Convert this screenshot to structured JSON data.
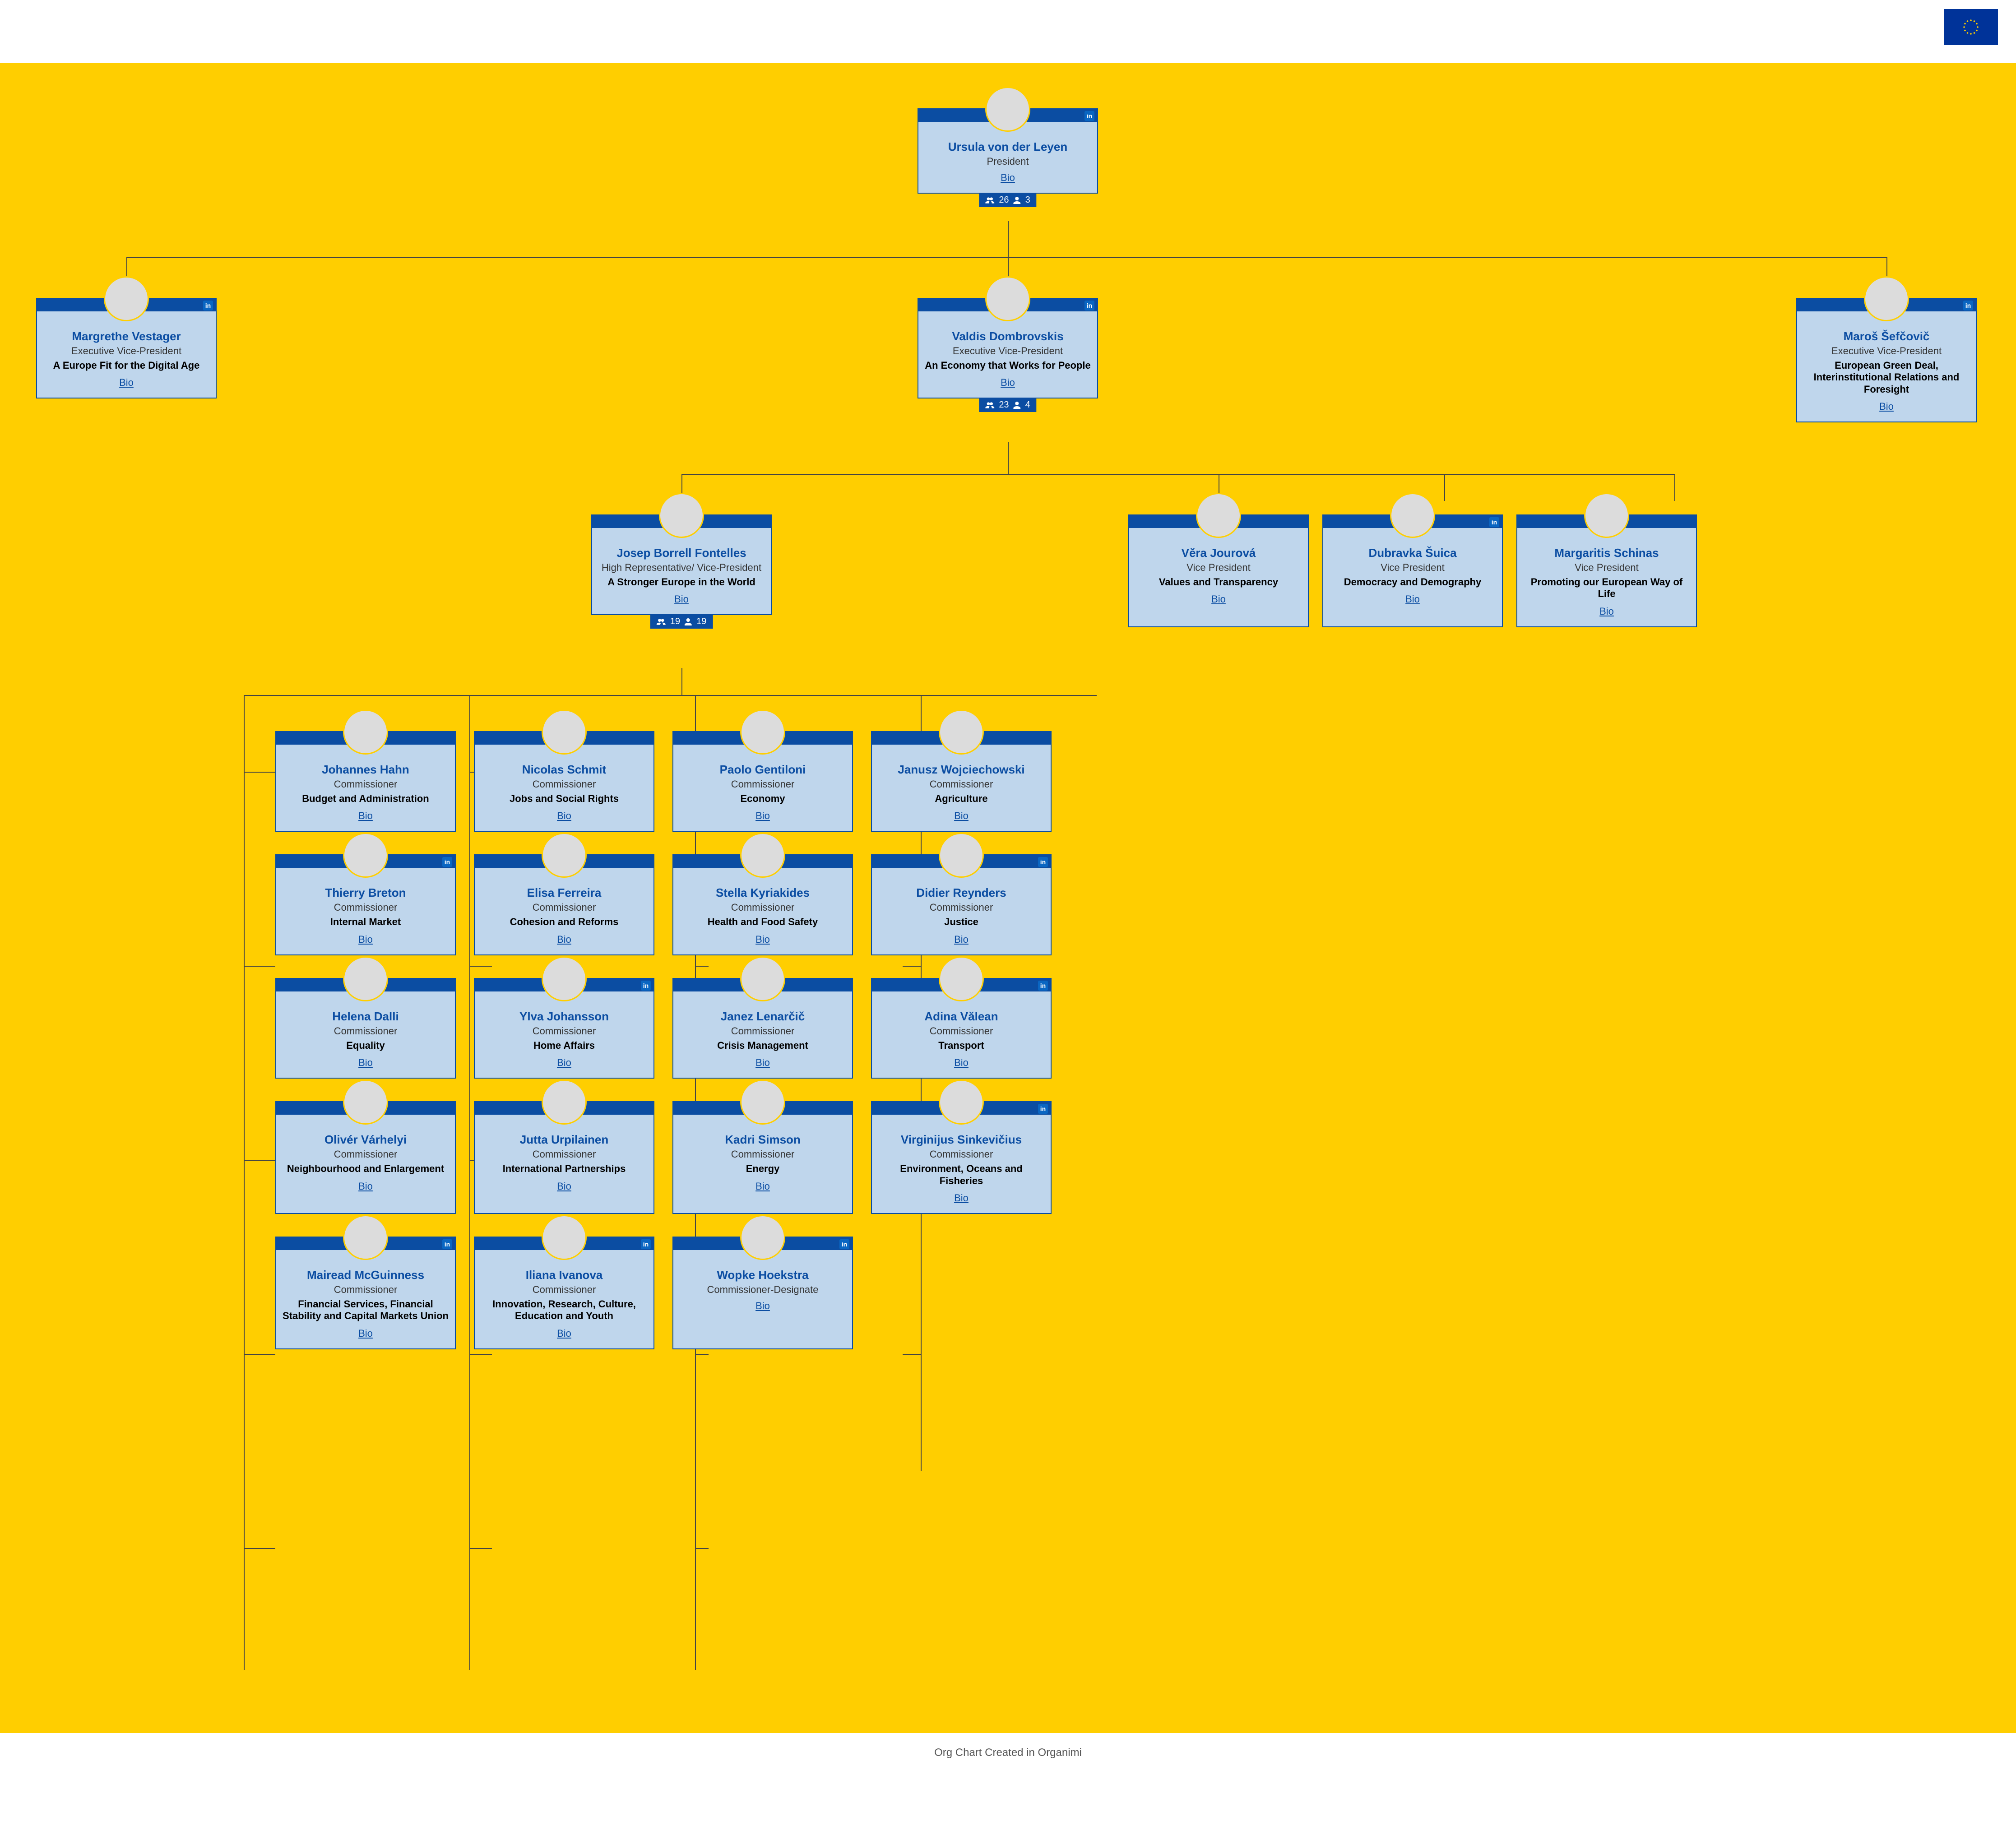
{
  "footer_text": "Org Chart Created in Organimi",
  "colors": {
    "page_bg": "#ffce00",
    "card_bg": "#bfd6ec",
    "card_border": "#0b4da2",
    "card_topbar": "#0b4da2",
    "name_color": "#0b4da2",
    "bio_color": "#0b4da2",
    "linkedin_bg": "#0a66c2"
  },
  "structure": {
    "type": "tree",
    "levels": 4
  },
  "president": {
    "name": "Ursula von der Leyen",
    "title": "President",
    "bio": "Bio",
    "linkedin": true,
    "counts": {
      "total": 26,
      "direct": 3
    }
  },
  "evps": [
    {
      "name": "Margrethe Vestager",
      "title": "Executive Vice-President",
      "portfolio": "A Europe Fit for the Digital Age",
      "bio": "Bio",
      "linkedin": true
    },
    {
      "name": "Valdis Dombrovskis",
      "title": "Executive Vice-President",
      "portfolio": "An Economy that Works for People",
      "bio": "Bio",
      "linkedin": true,
      "counts": {
        "total": 23,
        "direct": 4
      }
    },
    {
      "name": "Maroš Šefčovič",
      "title": "Executive Vice-President",
      "portfolio": "European Green Deal, Interinstitutional Relations and Foresight",
      "bio": "Bio",
      "linkedin": true
    }
  ],
  "hrvp": {
    "name": "Josep Borrell Fontelles",
    "title": "High Representative/ Vice-President",
    "portfolio": "A Stronger Europe in the World",
    "bio": "Bio",
    "linkedin": false,
    "counts": {
      "total": 19,
      "direct": 19
    }
  },
  "vps": [
    {
      "name": "Věra Jourová",
      "title": "Vice President",
      "portfolio": "Values and Transparency",
      "bio": "Bio",
      "linkedin": false
    },
    {
      "name": "Dubravka Šuica",
      "title": "Vice President",
      "portfolio": "Democracy and Demography",
      "bio": "Bio",
      "linkedin": true
    },
    {
      "name": "Margaritis Schinas",
      "title": "Vice President",
      "portfolio": "Promoting our European Way of Life",
      "bio": "Bio",
      "linkedin": false
    }
  ],
  "commissioners": [
    {
      "name": "Johannes Hahn",
      "title": "Commissioner",
      "portfolio": "Budget and Administration",
      "bio": "Bio",
      "linkedin": false
    },
    {
      "name": "Nicolas Schmit",
      "title": "Commissioner",
      "portfolio": "Jobs and Social Rights",
      "bio": "Bio",
      "linkedin": false
    },
    {
      "name": "Paolo Gentiloni",
      "title": "Commissioner",
      "portfolio": "Economy",
      "bio": "Bio",
      "linkedin": false
    },
    {
      "name": "Janusz Wojciechowski",
      "title": "Commissioner",
      "portfolio": "Agriculture",
      "bio": "Bio",
      "linkedin": false
    },
    {
      "name": "Thierry Breton",
      "title": "Commissioner",
      "portfolio": "Internal Market",
      "bio": "Bio",
      "linkedin": true
    },
    {
      "name": "Elisa Ferreira",
      "title": "Commissioner",
      "portfolio": "Cohesion and Reforms",
      "bio": "Bio",
      "linkedin": false
    },
    {
      "name": "Stella Kyriakides",
      "title": "Commissioner",
      "portfolio": "Health and Food Safety",
      "bio": "Bio",
      "linkedin": false
    },
    {
      "name": "Didier Reynders",
      "title": "Commissioner",
      "portfolio": "Justice",
      "bio": "Bio",
      "linkedin": true
    },
    {
      "name": "Helena Dalli",
      "title": "Commissioner",
      "portfolio": "Equality",
      "bio": "Bio",
      "linkedin": false
    },
    {
      "name": "Ylva Johansson",
      "title": "Commissioner",
      "portfolio": "Home Affairs",
      "bio": "Bio",
      "linkedin": true
    },
    {
      "name": "Janez Lenarčič",
      "title": "Commissioner",
      "portfolio": "Crisis Management",
      "bio": "Bio",
      "linkedin": false
    },
    {
      "name": "Adina Vălean",
      "title": "Commissioner",
      "portfolio": "Transport",
      "bio": "Bio",
      "linkedin": true
    },
    {
      "name": "Olivér Várhelyi",
      "title": "Commissioner",
      "portfolio": "Neighbourhood and Enlargement",
      "bio": "Bio",
      "linkedin": false
    },
    {
      "name": "Jutta Urpilainen",
      "title": "Commissioner",
      "portfolio": "International Partnerships",
      "bio": "Bio",
      "linkedin": false
    },
    {
      "name": "Kadri Simson",
      "title": "Commissioner",
      "portfolio": "Energy",
      "bio": "Bio",
      "linkedin": false
    },
    {
      "name": "Virginijus Sinkevičius",
      "title": "Commissioner",
      "portfolio": "Environment, Oceans and Fisheries",
      "bio": "Bio",
      "linkedin": true
    },
    {
      "name": "Mairead McGuinness",
      "title": "Commissioner",
      "portfolio": "Financial Services, Financial Stability and Capital Markets Union",
      "bio": "Bio",
      "linkedin": true
    },
    {
      "name": "Iliana Ivanova",
      "title": "Commissioner",
      "portfolio": "Innovation, Research, Culture, Education and Youth",
      "bio": "Bio",
      "linkedin": true
    },
    {
      "name": "Wopke Hoekstra",
      "title": "Commissioner-Designate",
      "portfolio": "",
      "bio": "Bio",
      "linkedin": true
    }
  ]
}
